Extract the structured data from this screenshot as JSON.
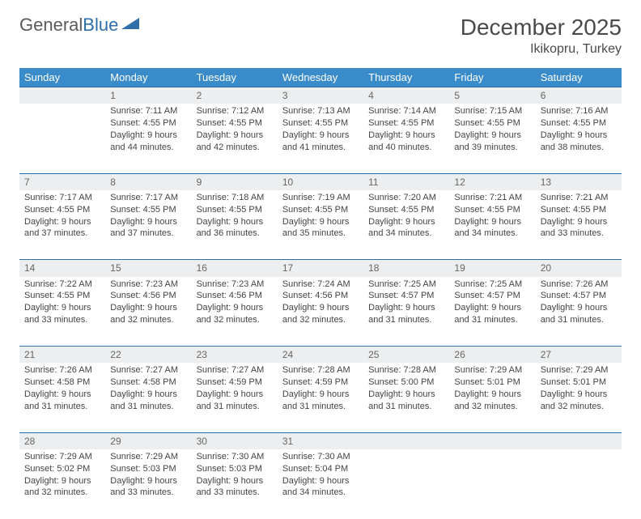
{
  "logo": {
    "word1": "General",
    "word2": "Blue",
    "text_color": "#5a5a5a",
    "accent_color": "#2f6fa8"
  },
  "title": "December 2025",
  "location": "Ikikopru, Turkey",
  "header_bg": "#3a8bc9",
  "header_text_color": "#ffffff",
  "daynum_bg": "#eceeef",
  "row_border_color": "#2f6fa8",
  "days_of_week": [
    "Sunday",
    "Monday",
    "Tuesday",
    "Wednesday",
    "Thursday",
    "Friday",
    "Saturday"
  ],
  "weeks": [
    [
      null,
      {
        "n": "1",
        "sr": "7:11 AM",
        "ss": "4:55 PM",
        "dl": "9 hours and 44 minutes."
      },
      {
        "n": "2",
        "sr": "7:12 AM",
        "ss": "4:55 PM",
        "dl": "9 hours and 42 minutes."
      },
      {
        "n": "3",
        "sr": "7:13 AM",
        "ss": "4:55 PM",
        "dl": "9 hours and 41 minutes."
      },
      {
        "n": "4",
        "sr": "7:14 AM",
        "ss": "4:55 PM",
        "dl": "9 hours and 40 minutes."
      },
      {
        "n": "5",
        "sr": "7:15 AM",
        "ss": "4:55 PM",
        "dl": "9 hours and 39 minutes."
      },
      {
        "n": "6",
        "sr": "7:16 AM",
        "ss": "4:55 PM",
        "dl": "9 hours and 38 minutes."
      }
    ],
    [
      {
        "n": "7",
        "sr": "7:17 AM",
        "ss": "4:55 PM",
        "dl": "9 hours and 37 minutes."
      },
      {
        "n": "8",
        "sr": "7:17 AM",
        "ss": "4:55 PM",
        "dl": "9 hours and 37 minutes."
      },
      {
        "n": "9",
        "sr": "7:18 AM",
        "ss": "4:55 PM",
        "dl": "9 hours and 36 minutes."
      },
      {
        "n": "10",
        "sr": "7:19 AM",
        "ss": "4:55 PM",
        "dl": "9 hours and 35 minutes."
      },
      {
        "n": "11",
        "sr": "7:20 AM",
        "ss": "4:55 PM",
        "dl": "9 hours and 34 minutes."
      },
      {
        "n": "12",
        "sr": "7:21 AM",
        "ss": "4:55 PM",
        "dl": "9 hours and 34 minutes."
      },
      {
        "n": "13",
        "sr": "7:21 AM",
        "ss": "4:55 PM",
        "dl": "9 hours and 33 minutes."
      }
    ],
    [
      {
        "n": "14",
        "sr": "7:22 AM",
        "ss": "4:55 PM",
        "dl": "9 hours and 33 minutes."
      },
      {
        "n": "15",
        "sr": "7:23 AM",
        "ss": "4:56 PM",
        "dl": "9 hours and 32 minutes."
      },
      {
        "n": "16",
        "sr": "7:23 AM",
        "ss": "4:56 PM",
        "dl": "9 hours and 32 minutes."
      },
      {
        "n": "17",
        "sr": "7:24 AM",
        "ss": "4:56 PM",
        "dl": "9 hours and 32 minutes."
      },
      {
        "n": "18",
        "sr": "7:25 AM",
        "ss": "4:57 PM",
        "dl": "9 hours and 31 minutes."
      },
      {
        "n": "19",
        "sr": "7:25 AM",
        "ss": "4:57 PM",
        "dl": "9 hours and 31 minutes."
      },
      {
        "n": "20",
        "sr": "7:26 AM",
        "ss": "4:57 PM",
        "dl": "9 hours and 31 minutes."
      }
    ],
    [
      {
        "n": "21",
        "sr": "7:26 AM",
        "ss": "4:58 PM",
        "dl": "9 hours and 31 minutes."
      },
      {
        "n": "22",
        "sr": "7:27 AM",
        "ss": "4:58 PM",
        "dl": "9 hours and 31 minutes."
      },
      {
        "n": "23",
        "sr": "7:27 AM",
        "ss": "4:59 PM",
        "dl": "9 hours and 31 minutes."
      },
      {
        "n": "24",
        "sr": "7:28 AM",
        "ss": "4:59 PM",
        "dl": "9 hours and 31 minutes."
      },
      {
        "n": "25",
        "sr": "7:28 AM",
        "ss": "5:00 PM",
        "dl": "9 hours and 31 minutes."
      },
      {
        "n": "26",
        "sr": "7:29 AM",
        "ss": "5:01 PM",
        "dl": "9 hours and 32 minutes."
      },
      {
        "n": "27",
        "sr": "7:29 AM",
        "ss": "5:01 PM",
        "dl": "9 hours and 32 minutes."
      }
    ],
    [
      {
        "n": "28",
        "sr": "7:29 AM",
        "ss": "5:02 PM",
        "dl": "9 hours and 32 minutes."
      },
      {
        "n": "29",
        "sr": "7:29 AM",
        "ss": "5:03 PM",
        "dl": "9 hours and 33 minutes."
      },
      {
        "n": "30",
        "sr": "7:30 AM",
        "ss": "5:03 PM",
        "dl": "9 hours and 33 minutes."
      },
      {
        "n": "31",
        "sr": "7:30 AM",
        "ss": "5:04 PM",
        "dl": "9 hours and 34 minutes."
      },
      null,
      null,
      null
    ]
  ],
  "labels": {
    "sunrise": "Sunrise:",
    "sunset": "Sunset:",
    "daylight": "Daylight:"
  }
}
